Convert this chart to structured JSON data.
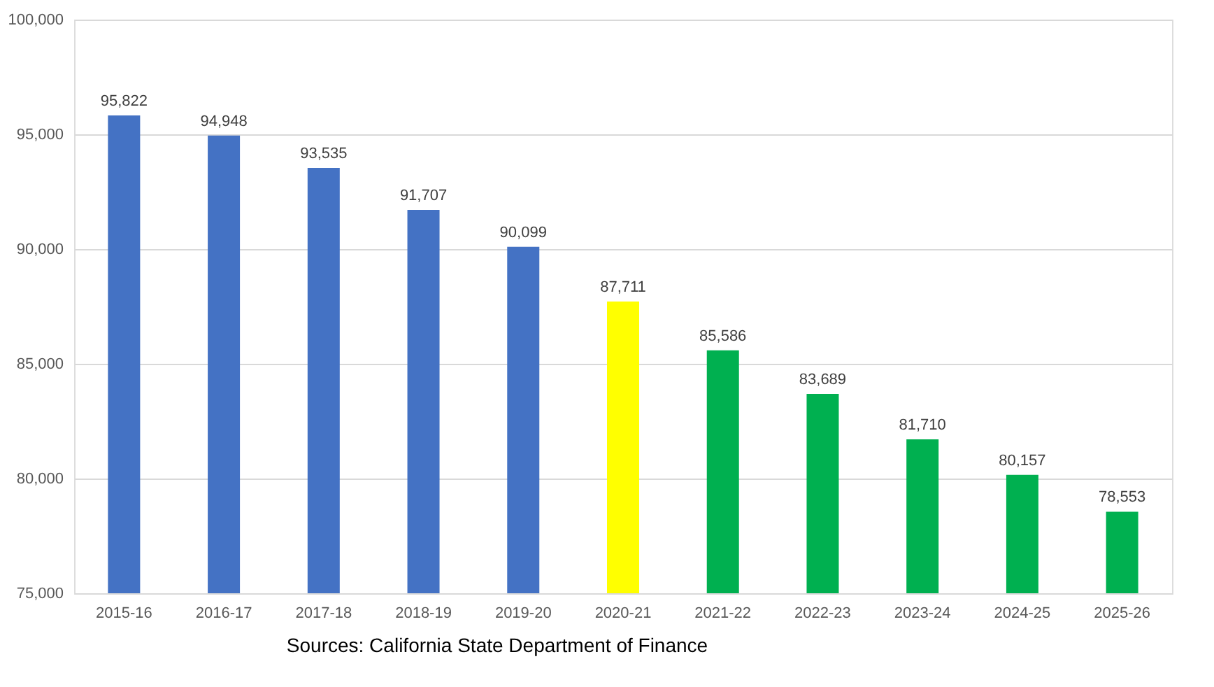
{
  "chart_data": {
    "type": "bar",
    "categories": [
      "2015-16",
      "2016-17",
      "2017-18",
      "2018-19",
      "2019-20",
      "2020-21",
      "2021-22",
      "2022-23",
      "2023-24",
      "2024-25",
      "2025-26"
    ],
    "values": [
      95822,
      94948,
      93535,
      91707,
      90099,
      87711,
      85586,
      83689,
      81710,
      80157,
      78553
    ],
    "value_labels": [
      "95,822",
      "94,948",
      "93,535",
      "91,707",
      "90,099",
      "87,711",
      "85,586",
      "83,689",
      "81,710",
      "80,157",
      "78,553"
    ],
    "colors": [
      "#4472c4",
      "#4472c4",
      "#4472c4",
      "#4472c4",
      "#4472c4",
      "#ffff00",
      "#00b050",
      "#00b050",
      "#00b050",
      "#00b050",
      "#00b050"
    ],
    "ylim": [
      75000,
      100000
    ],
    "yticks": [
      {
        "value": 75000,
        "label": "75,000"
      },
      {
        "value": 80000,
        "label": "80,000"
      },
      {
        "value": 85000,
        "label": "85,000"
      },
      {
        "value": 90000,
        "label": "90,000"
      },
      {
        "value": 95000,
        "label": "95,000"
      },
      {
        "value": 100000,
        "label": "100,000"
      }
    ],
    "grid": "y",
    "annotations": [
      "Sources: California State Department of Finance"
    ]
  }
}
